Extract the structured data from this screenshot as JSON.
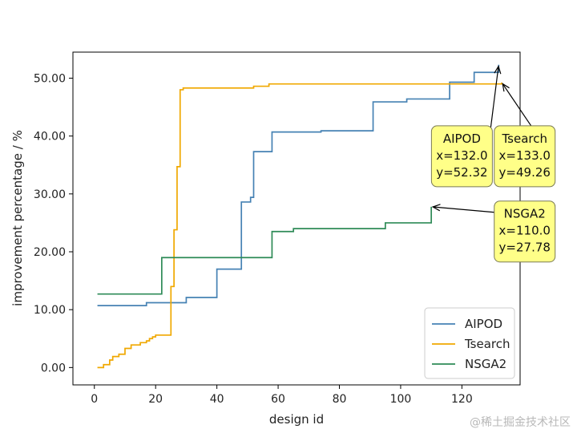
{
  "chart_data": {
    "type": "line",
    "step": true,
    "xlabel": "design id",
    "ylabel": "improvement percentage / %",
    "xlim": [
      -7,
      139
    ],
    "ylim": [
      -3,
      54.5
    ],
    "xticks": [
      0,
      20,
      40,
      60,
      80,
      100,
      120
    ],
    "yticks": [
      0,
      10,
      20,
      30,
      40,
      50
    ],
    "ytick_labels": [
      "0.00",
      "10.00",
      "20.00",
      "30.00",
      "40.00",
      "50.00"
    ],
    "legend_position": "lower-right",
    "series": [
      {
        "name": "AIPOD",
        "color": "#4682b4",
        "x": [
          1,
          17,
          30,
          40,
          48,
          51,
          52,
          58,
          74,
          91,
          102,
          116,
          124,
          132
        ],
        "y": [
          10.7,
          11.2,
          12.1,
          17.0,
          28.6,
          29.4,
          37.3,
          40.7,
          40.9,
          45.9,
          46.4,
          49.3,
          51.0,
          52.32
        ]
      },
      {
        "name": "Tsearch",
        "color": "#f0a800",
        "x": [
          1,
          3,
          5,
          6,
          8,
          10,
          12,
          15,
          17,
          18,
          19,
          20,
          25,
          26,
          27,
          28,
          29,
          30,
          52,
          57,
          133
        ],
        "y": [
          0.0,
          0.5,
          1.3,
          1.9,
          2.3,
          3.3,
          3.9,
          4.3,
          4.6,
          5.0,
          5.3,
          5.6,
          14.0,
          23.8,
          34.7,
          48.0,
          48.3,
          48.3,
          48.6,
          49.0,
          49.26
        ]
      },
      {
        "name": "NSGA2",
        "color": "#2e8b57",
        "x": [
          1,
          22,
          58,
          65,
          95,
          110
        ],
        "y": [
          12.7,
          19.0,
          23.5,
          24.0,
          25.0,
          27.78
        ]
      }
    ],
    "annotations": [
      {
        "series": "AIPOD",
        "x": 132.0,
        "y": 52.32,
        "lines": [
          "AIPOD",
          "x=132.0",
          "y=52.32"
        ],
        "box_x": 120,
        "box_y": 36.5
      },
      {
        "series": "Tsearch",
        "x": 133.0,
        "y": 49.26,
        "lines": [
          "Tsearch",
          "x=133.0",
          "y=49.26"
        ],
        "box_x": 140.5,
        "box_y": 36.5
      },
      {
        "series": "NSGA2",
        "x": 110.0,
        "y": 27.78,
        "lines": [
          "NSGA2",
          "x=110.0",
          "y=27.78"
        ],
        "box_x": 140.5,
        "box_y": 23.5
      }
    ]
  },
  "watermark": "@稀土掘金技术社区"
}
